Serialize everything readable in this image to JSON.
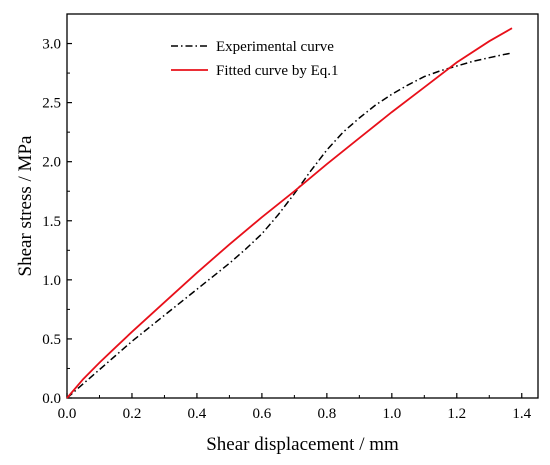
{
  "chart_data": {
    "type": "line",
    "title": "",
    "xlabel": "Shear displacement / mm",
    "ylabel": "Shear stress / MPa",
    "xlim": [
      0.0,
      1.45
    ],
    "ylim": [
      0.0,
      3.25
    ],
    "xticks": [
      0.0,
      0.2,
      0.4,
      0.6,
      0.8,
      1.0,
      1.2,
      1.4
    ],
    "xtick_labels": [
      "0.0",
      "0.2",
      "0.4",
      "0.6",
      "0.8",
      "1.0",
      "1.2",
      "1.4"
    ],
    "yticks": [
      0.0,
      0.5,
      1.0,
      1.5,
      2.0,
      2.5,
      3.0
    ],
    "ytick_labels": [
      "0.0",
      "0.5",
      "1.0",
      "1.5",
      "2.0",
      "2.5",
      "3.0"
    ],
    "grid": false,
    "legend_position": "top-center",
    "series": [
      {
        "name": "Experimental curve",
        "color": "#000000",
        "line_style": "dash-dot",
        "x": [
          0.0,
          0.05,
          0.1,
          0.15,
          0.2,
          0.25,
          0.3,
          0.35,
          0.4,
          0.45,
          0.5,
          0.55,
          0.6,
          0.65,
          0.7,
          0.75,
          0.8,
          0.85,
          0.9,
          0.95,
          1.0,
          1.05,
          1.1,
          1.15,
          1.2,
          1.25,
          1.3,
          1.35,
          1.37
        ],
        "y": [
          0.0,
          0.12,
          0.24,
          0.36,
          0.48,
          0.59,
          0.7,
          0.81,
          0.92,
          1.03,
          1.14,
          1.26,
          1.39,
          1.55,
          1.73,
          1.92,
          2.1,
          2.25,
          2.37,
          2.48,
          2.57,
          2.65,
          2.72,
          2.77,
          2.81,
          2.85,
          2.88,
          2.91,
          2.92
        ]
      },
      {
        "name": "Fitted curve by Eq.1",
        "color": "#e8101a",
        "line_style": "solid",
        "x": [
          0.0,
          0.05,
          0.1,
          0.15,
          0.2,
          0.3,
          0.4,
          0.5,
          0.6,
          0.7,
          0.8,
          0.9,
          1.0,
          1.1,
          1.2,
          1.3,
          1.37
        ],
        "y": [
          0.0,
          0.16,
          0.3,
          0.43,
          0.56,
          0.81,
          1.06,
          1.3,
          1.53,
          1.75,
          1.98,
          2.2,
          2.42,
          2.63,
          2.84,
          3.02,
          3.13
        ]
      }
    ]
  }
}
